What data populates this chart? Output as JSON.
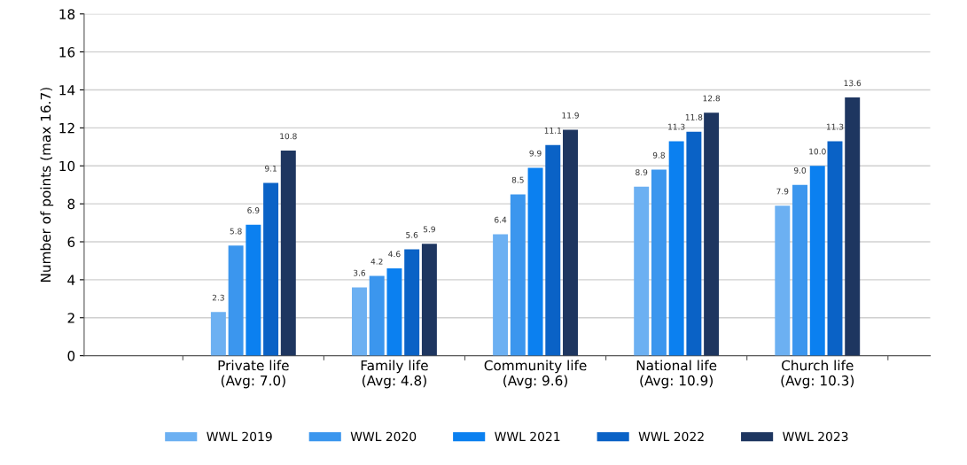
{
  "chart_data": {
    "type": "bar",
    "ylabel": "Number of points (max 16.7)",
    "categories": [
      "Private life\n(Avg: 7.0)",
      "Family life\n(Avg: 4.8)",
      "Community life\n(Avg: 9.6)",
      "National life\n(Avg: 10.9)",
      "Church life\n(Avg: 10.3)"
    ],
    "series": [
      {
        "name": "WWL 2019",
        "color": "#6cb0f2",
        "values": [
          2.3,
          3.6,
          6.4,
          8.9,
          7.9
        ],
        "value_labels": [
          "2.3",
          "3.6",
          "6.4",
          "8.9",
          "7.9"
        ]
      },
      {
        "name": "WWL 2020",
        "color": "#3b96ee",
        "values": [
          5.8,
          4.2,
          8.5,
          9.8,
          9.0
        ],
        "value_labels": [
          "5.8",
          "4.2",
          "8.5",
          "9.8",
          "9.0"
        ]
      },
      {
        "name": "WWL 2021",
        "color": "#0b80f0",
        "values": [
          6.9,
          4.6,
          9.9,
          11.3,
          10.0
        ],
        "value_labels": [
          "6.9",
          "4.6",
          "9.9",
          "11.3",
          "10.0"
        ]
      },
      {
        "name": "WWL 2022",
        "color": "#0a62c6",
        "values": [
          9.1,
          5.6,
          11.1,
          11.8,
          11.3
        ],
        "value_labels": [
          "9.1",
          "5.6",
          "11.1",
          "11.8",
          "11.3"
        ]
      },
      {
        "name": "WWL 2023",
        "color": "#1e3660",
        "values": [
          10.8,
          5.9,
          11.9,
          12.8,
          13.6
        ],
        "value_labels": [
          "10.8",
          "5.9",
          "11.9",
          "12.8",
          "13.6"
        ]
      }
    ],
    "ylim": [
      0,
      18
    ],
    "yticks": [
      0,
      2,
      4,
      6,
      8,
      10,
      12,
      14,
      16,
      18
    ],
    "grid": "y",
    "legend": "bottom"
  }
}
